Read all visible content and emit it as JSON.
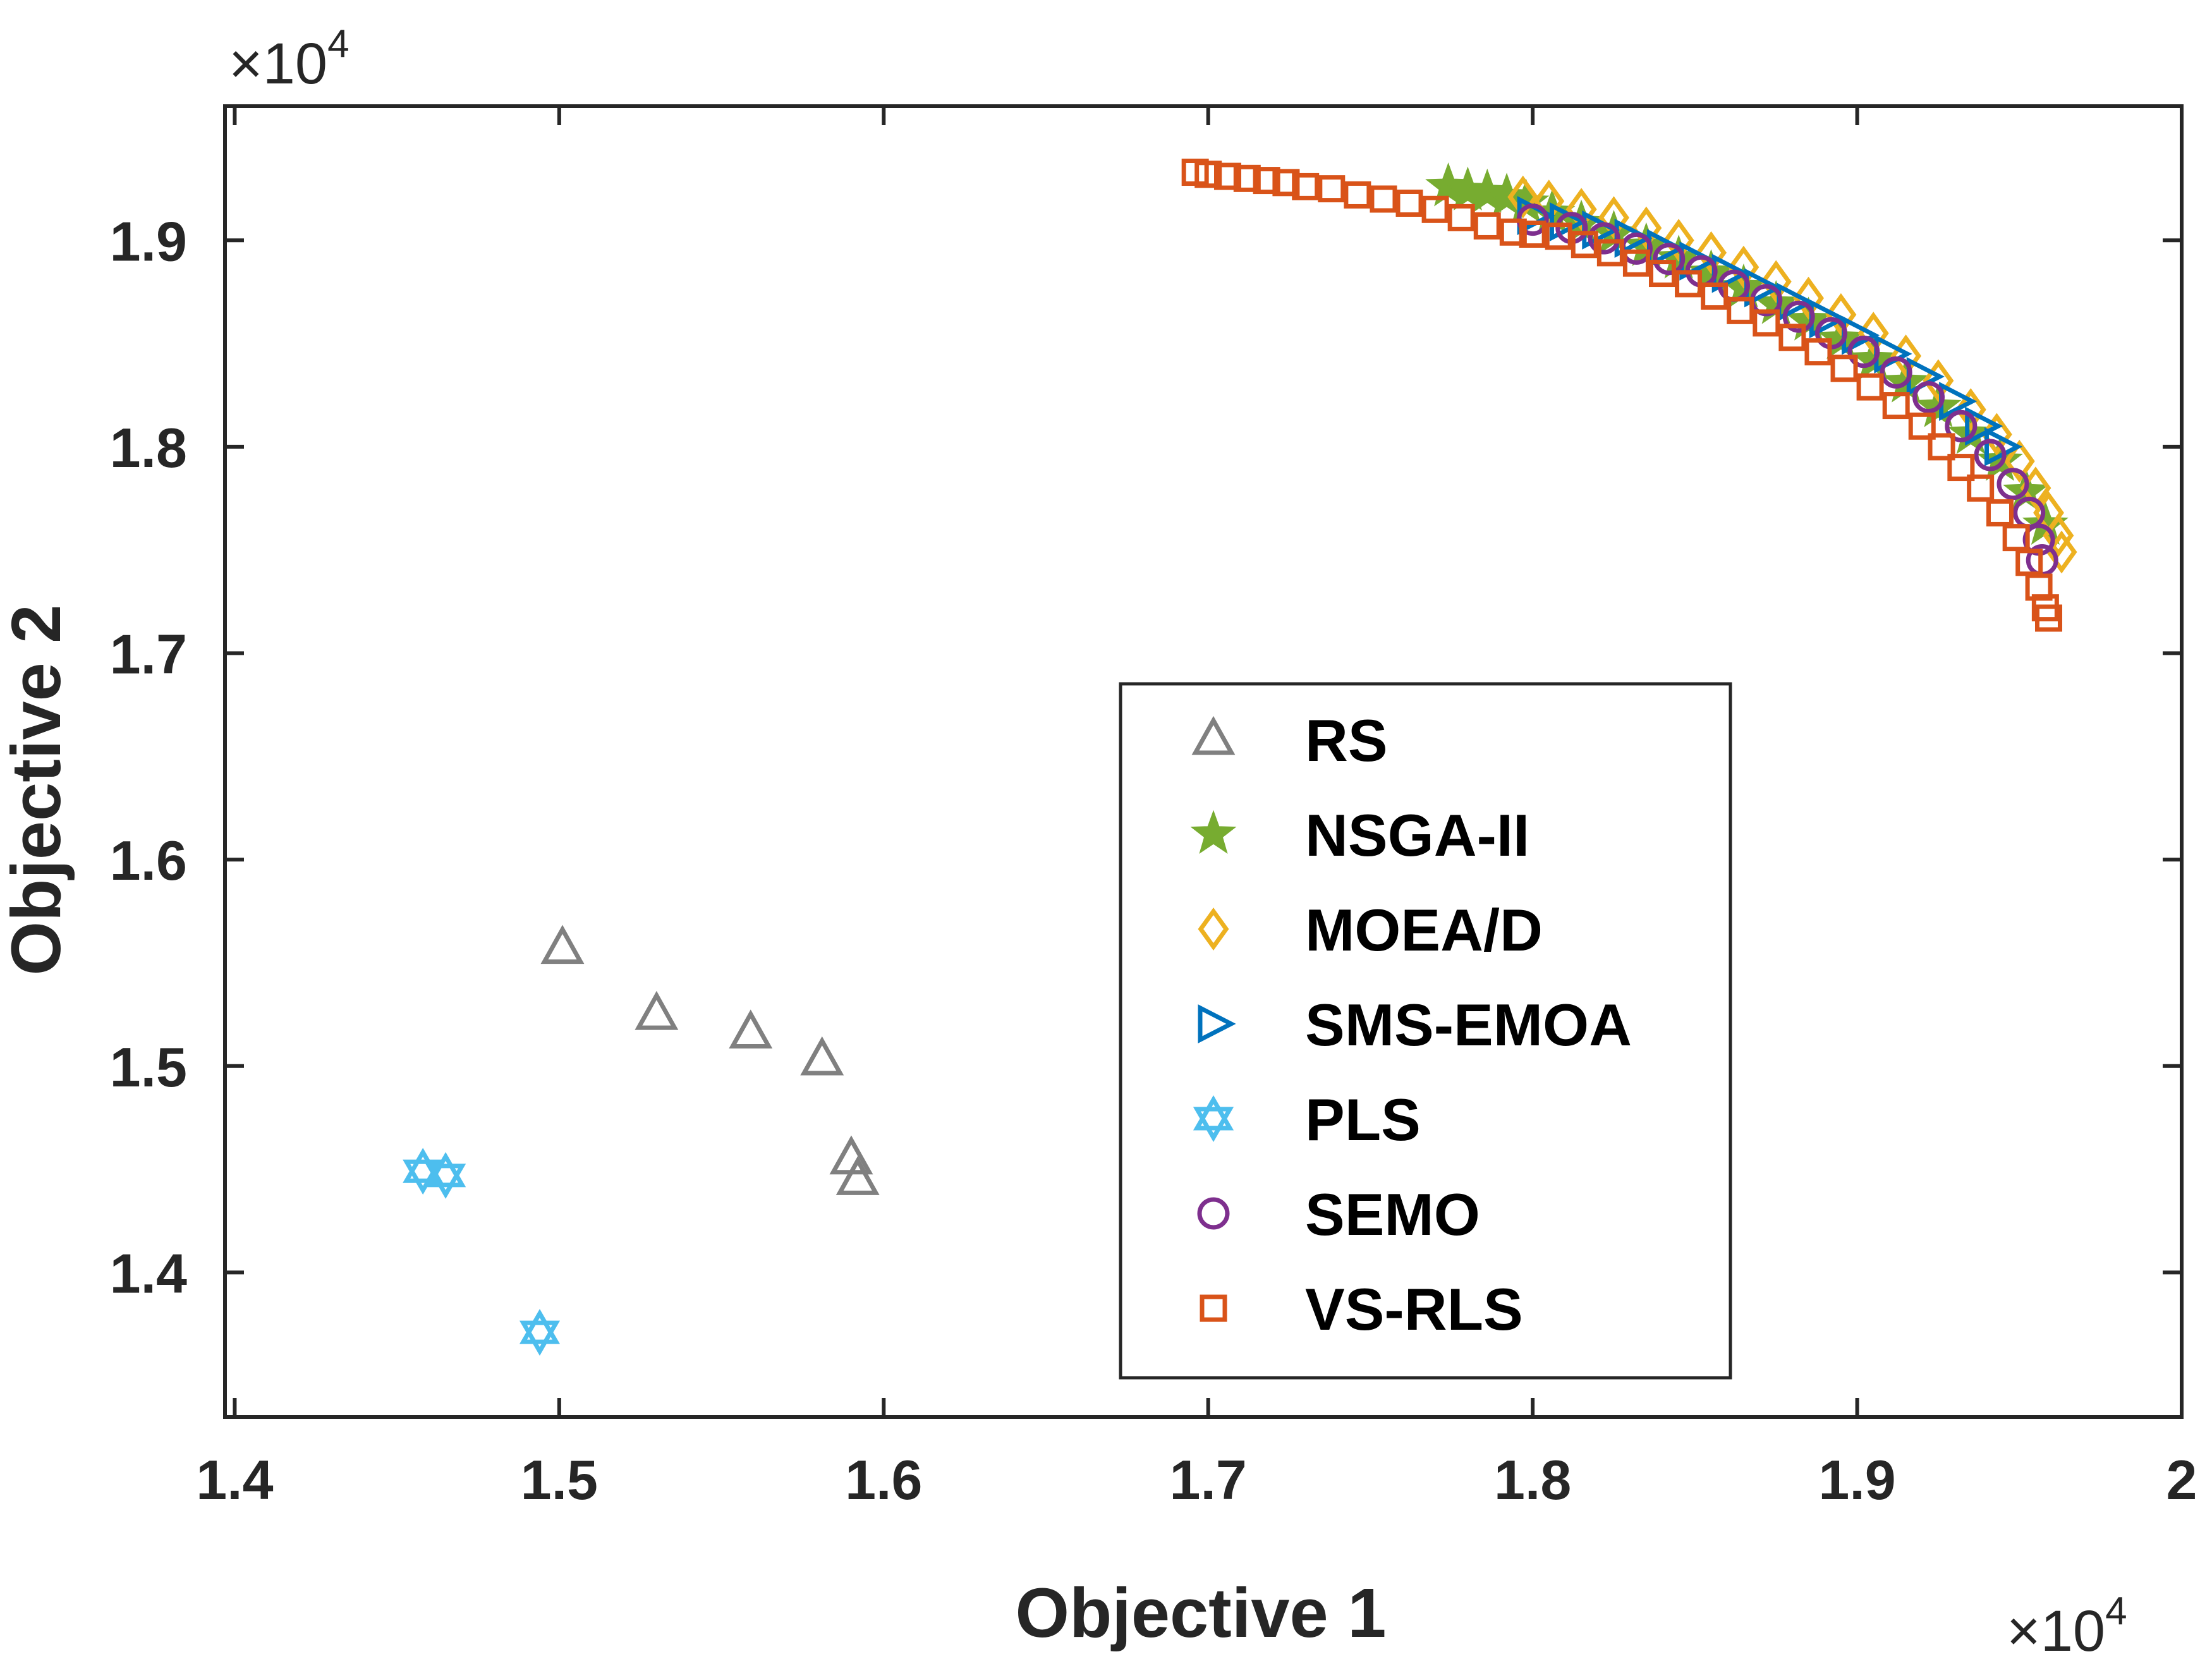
{
  "chart_data": {
    "type": "scatter",
    "xlabel": "Objective 1",
    "ylabel": "Objective 2",
    "x_multiplier": "×10",
    "x_multiplier_exp": "4",
    "y_multiplier": "×10",
    "y_multiplier_exp": "4",
    "xlim": [
      1.397,
      2.0
    ],
    "ylim": [
      1.33,
      1.965
    ],
    "xticks": [
      1.4,
      1.5,
      1.6,
      1.7,
      1.8,
      1.9,
      2
    ],
    "xtick_labels": [
      "1.4",
      "1.5",
      "1.6",
      "1.7",
      "1.8",
      "1.9",
      "2"
    ],
    "yticks": [
      1.4,
      1.5,
      1.6,
      1.7,
      1.8,
      1.9
    ],
    "ytick_labels": [
      "1.4",
      "1.5",
      "1.6",
      "1.7",
      "1.8",
      "1.9"
    ],
    "grid": false,
    "legend_position": "center-right",
    "series": [
      {
        "name": "RS",
        "marker": "triangle",
        "color": "#808080",
        "points": [
          [
            1.501,
            1.557
          ],
          [
            1.53,
            1.525
          ],
          [
            1.559,
            1.516
          ],
          [
            1.581,
            1.503
          ],
          [
            1.59,
            1.455
          ],
          [
            1.592,
            1.445
          ]
        ]
      },
      {
        "name": "NSGA-II",
        "marker": "star",
        "color": "#77AC30",
        "points": [
          [
            1.774,
            1.926
          ],
          [
            1.78,
            1.924
          ],
          [
            1.786,
            1.923
          ],
          [
            1.792,
            1.921
          ],
          [
            1.798,
            1.918
          ],
          [
            1.806,
            1.913
          ],
          [
            1.815,
            1.908
          ],
          [
            1.825,
            1.903
          ],
          [
            1.835,
            1.897
          ],
          [
            1.845,
            1.891
          ],
          [
            1.855,
            1.884
          ],
          [
            1.865,
            1.877
          ],
          [
            1.875,
            1.869
          ],
          [
            1.885,
            1.861
          ],
          [
            1.895,
            1.852
          ],
          [
            1.905,
            1.842
          ],
          [
            1.915,
            1.831
          ],
          [
            1.925,
            1.819
          ],
          [
            1.935,
            1.806
          ],
          [
            1.944,
            1.793
          ],
          [
            1.952,
            1.778
          ],
          [
            1.958,
            1.762
          ]
        ]
      },
      {
        "name": "MOEA/D",
        "marker": "diamond",
        "color": "#EDB120",
        "points": [
          [
            1.797,
            1.921
          ],
          [
            1.805,
            1.919
          ],
          [
            1.815,
            1.915
          ],
          [
            1.825,
            1.911
          ],
          [
            1.835,
            1.906
          ],
          [
            1.845,
            1.9
          ],
          [
            1.855,
            1.894
          ],
          [
            1.865,
            1.887
          ],
          [
            1.875,
            1.88
          ],
          [
            1.885,
            1.872
          ],
          [
            1.895,
            1.864
          ],
          [
            1.905,
            1.855
          ],
          [
            1.915,
            1.844
          ],
          [
            1.925,
            1.832
          ],
          [
            1.935,
            1.818
          ],
          [
            1.943,
            1.806
          ],
          [
            1.95,
            1.793
          ],
          [
            1.955,
            1.78
          ],
          [
            1.959,
            1.768
          ],
          [
            1.962,
            1.757
          ],
          [
            1.963,
            1.749
          ]
        ]
      },
      {
        "name": "SMS-EMOA",
        "marker": "triangle-right",
        "color": "#0072BD",
        "points": [
          [
            1.8,
            1.912
          ],
          [
            1.81,
            1.909
          ],
          [
            1.82,
            1.905
          ],
          [
            1.83,
            1.901
          ],
          [
            1.84,
            1.896
          ],
          [
            1.85,
            1.89
          ],
          [
            1.86,
            1.884
          ],
          [
            1.87,
            1.877
          ],
          [
            1.88,
            1.87
          ],
          [
            1.89,
            1.862
          ],
          [
            1.9,
            1.854
          ],
          [
            1.91,
            1.845
          ],
          [
            1.92,
            1.834
          ],
          [
            1.93,
            1.822
          ],
          [
            1.938,
            1.81
          ],
          [
            1.944,
            1.8
          ]
        ]
      },
      {
        "name": "PLS",
        "marker": "hexagram",
        "color": "#4DBEEE",
        "points": [
          [
            1.458,
            1.449
          ],
          [
            1.465,
            1.447
          ],
          [
            1.494,
            1.371
          ]
        ]
      },
      {
        "name": "SEMO",
        "marker": "circle",
        "color": "#7E2F8E",
        "points": [
          [
            1.8,
            1.91
          ],
          [
            1.812,
            1.906
          ],
          [
            1.822,
            1.901
          ],
          [
            1.832,
            1.896
          ],
          [
            1.842,
            1.891
          ],
          [
            1.852,
            1.885
          ],
          [
            1.862,
            1.878
          ],
          [
            1.872,
            1.871
          ],
          [
            1.882,
            1.863
          ],
          [
            1.892,
            1.855
          ],
          [
            1.902,
            1.846
          ],
          [
            1.912,
            1.836
          ],
          [
            1.922,
            1.824
          ],
          [
            1.932,
            1.81
          ],
          [
            1.941,
            1.796
          ],
          [
            1.948,
            1.782
          ],
          [
            1.953,
            1.768
          ],
          [
            1.956,
            1.755
          ],
          [
            1.957,
            1.745
          ]
        ]
      },
      {
        "name": "VS-RLS",
        "marker": "square",
        "color": "#D95319",
        "points": [
          [
            1.696,
            1.933
          ],
          [
            1.7,
            1.932
          ],
          [
            1.706,
            1.931
          ],
          [
            1.712,
            1.93
          ],
          [
            1.718,
            1.929
          ],
          [
            1.724,
            1.928
          ],
          [
            1.73,
            1.926
          ],
          [
            1.738,
            1.925
          ],
          [
            1.746,
            1.922
          ],
          [
            1.754,
            1.92
          ],
          [
            1.762,
            1.918
          ],
          [
            1.77,
            1.915
          ],
          [
            1.778,
            1.911
          ],
          [
            1.786,
            1.907
          ],
          [
            1.794,
            1.904
          ],
          [
            1.8,
            1.903
          ],
          [
            1.808,
            1.902
          ],
          [
            1.816,
            1.898
          ],
          [
            1.824,
            1.894
          ],
          [
            1.832,
            1.889
          ],
          [
            1.84,
            1.884
          ],
          [
            1.848,
            1.879
          ],
          [
            1.856,
            1.873
          ],
          [
            1.864,
            1.866
          ],
          [
            1.872,
            1.86
          ],
          [
            1.88,
            1.853
          ],
          [
            1.888,
            1.846
          ],
          [
            1.896,
            1.838
          ],
          [
            1.904,
            1.829
          ],
          [
            1.912,
            1.82
          ],
          [
            1.92,
            1.81
          ],
          [
            1.926,
            1.8
          ],
          [
            1.932,
            1.79
          ],
          [
            1.938,
            1.78
          ],
          [
            1.944,
            1.768
          ],
          [
            1.949,
            1.756
          ],
          [
            1.953,
            1.744
          ],
          [
            1.956,
            1.732
          ],
          [
            1.958,
            1.722
          ],
          [
            1.959,
            1.717
          ]
        ]
      }
    ]
  }
}
